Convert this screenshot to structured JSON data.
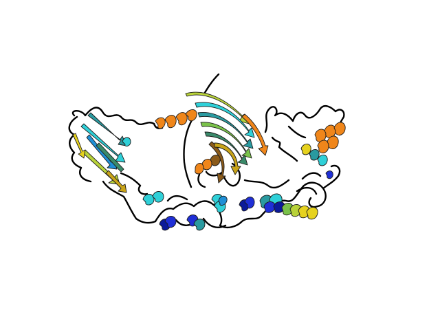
{
  "image": {
    "subject": "protein-cartoon",
    "background_color": "#ffffff",
    "coil_color": "#000000",
    "palette": {
      "blue": "#1f2fd6",
      "dark_blue": "#0b1a9a",
      "cyan": "#2fd0d8",
      "teal": "#2a9aa0",
      "sea_green": "#3a8a6a",
      "green": "#7ac24a",
      "yellow_green": "#b8d23a",
      "yellow": "#e6d21e",
      "gold": "#c9a419",
      "orange": "#f0861a",
      "brown": "#8a5a1a"
    }
  }
}
